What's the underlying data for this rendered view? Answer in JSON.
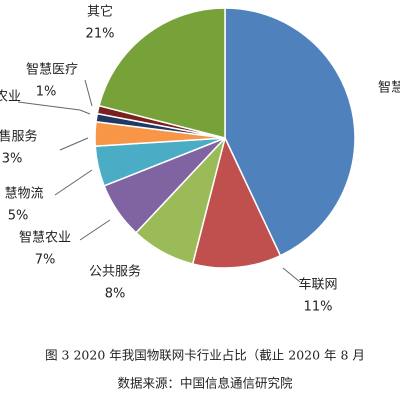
{
  "chart_data": {
    "type": "pie",
    "categories": [
      "智慧",
      "车联网",
      "公共服务",
      "智慧农业",
      "慧物流",
      "售服务",
      "农业",
      "智慧医疗",
      "其它"
    ],
    "values": [
      43,
      11,
      8,
      7,
      5,
      3,
      1,
      1,
      21
    ],
    "value_labels": [
      null,
      "11%",
      "8%",
      "7%",
      "5%",
      "3%",
      null,
      "1%",
      "21%"
    ],
    "colors": [
      "#4f81bd",
      "#c0504d",
      "#9bbb59",
      "#8064a2",
      "#4bacc6",
      "#f79646",
      "#1f3864",
      "#7b1f1f",
      "#77a23a"
    ],
    "caption": "图 3 2020 年我国物联网卡行业占比（截止 2020 年 8 月",
    "source": "数据来源：中国信息通信研究院"
  }
}
